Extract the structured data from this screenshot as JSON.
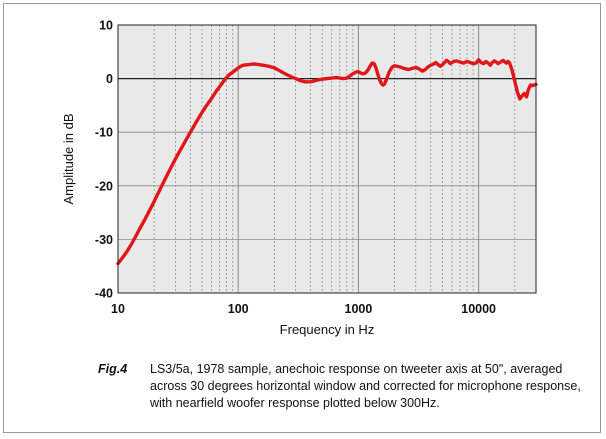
{
  "figure": {
    "label": "Fig.4",
    "caption": "LS3/5a, 1978 sample, anechoic response on tweeter axis at 50\", averaged across 30 degrees horizontal window and corrected for microphone response, with nearfield woofer response plotted below 300Hz."
  },
  "chart_data": {
    "type": "line",
    "title": "",
    "xlabel": "Frequency in Hz",
    "ylabel": "Amplitude in dB",
    "xscale": "log",
    "xlim": [
      10,
      30000
    ],
    "ylim": [
      -40,
      10
    ],
    "xticks": [
      {
        "value": 10,
        "label": "10"
      },
      {
        "value": 100,
        "label": "100"
      },
      {
        "value": 1000,
        "label": "1000"
      },
      {
        "value": 10000,
        "label": "10000"
      }
    ],
    "yticks": [
      {
        "value": 10,
        "label": "10"
      },
      {
        "value": 0,
        "label": "0"
      },
      {
        "value": -10,
        "label": "-10"
      },
      {
        "value": -20,
        "label": "-20"
      },
      {
        "value": -30,
        "label": "-30"
      },
      {
        "value": -40,
        "label": "-40"
      }
    ],
    "grid": true,
    "colors": {
      "line": "#e0161a",
      "grid": "#8a8a8a",
      "zero_line": "#222222",
      "plot_bg": "#e9e9e9"
    },
    "series": [
      {
        "x": [
          10,
          11,
          12,
          13,
          14,
          15,
          17,
          20,
          23,
          26,
          30,
          35,
          40,
          45,
          50,
          55,
          60,
          65,
          70,
          75,
          80,
          85,
          90,
          95,
          100,
          105,
          110,
          120,
          130,
          140,
          150,
          160,
          170,
          180,
          200,
          220,
          250,
          280,
          300,
          330,
          360,
          400,
          450,
          500,
          550,
          600,
          650,
          700,
          750,
          800,
          850,
          900,
          950,
          1000,
          1050,
          1100,
          1150,
          1200,
          1250,
          1300,
          1350,
          1400,
          1450,
          1500,
          1550,
          1600,
          1650,
          1700,
          1800,
          1900,
          2000,
          2200,
          2400,
          2600,
          2800,
          3000,
          3200,
          3400,
          3600,
          3800,
          4000,
          4200,
          4400,
          4600,
          4800,
          5000,
          5200,
          5400,
          5600,
          5800,
          6000,
          6200,
          6500,
          7000,
          7500,
          8000,
          8500,
          9000,
          9500,
          10000,
          10500,
          11000,
          11500,
          12000,
          12500,
          13000,
          13500,
          14000,
          14500,
          15000,
          15500,
          16000,
          16500,
          17000,
          17500,
          18000,
          18500,
          19000,
          20000,
          21000,
          22000,
          23000,
          24000,
          25000,
          26000,
          27000,
          28000,
          29000,
          30000
        ],
        "values": [
          -34.5,
          -33.3,
          -32.1,
          -30.8,
          -29.5,
          -28.2,
          -26.0,
          -22.9,
          -20.1,
          -17.7,
          -15.0,
          -12.3,
          -10.0,
          -8.0,
          -6.3,
          -4.9,
          -3.7,
          -2.5,
          -1.5,
          -0.6,
          0.2,
          0.8,
          1.2,
          1.6,
          2.0,
          2.3,
          2.5,
          2.6,
          2.7,
          2.7,
          2.6,
          2.5,
          2.4,
          2.3,
          2.0,
          1.5,
          0.8,
          0.3,
          0.0,
          -0.4,
          -0.6,
          -0.6,
          -0.3,
          -0.1,
          0.0,
          0.1,
          0.2,
          0.1,
          0.0,
          0.1,
          0.5,
          0.9,
          1.2,
          1.3,
          1.0,
          0.9,
          1.1,
          1.6,
          2.3,
          2.9,
          2.8,
          2.0,
          0.8,
          -0.2,
          -0.9,
          -1.2,
          -1.0,
          -0.3,
          1.2,
          2.1,
          2.4,
          2.2,
          1.9,
          1.7,
          1.9,
          2.1,
          1.8,
          1.4,
          1.7,
          2.2,
          2.5,
          2.7,
          3.0,
          2.6,
          2.3,
          2.6,
          3.0,
          3.4,
          3.2,
          2.8,
          3.0,
          3.2,
          3.3,
          3.1,
          2.9,
          3.2,
          3.0,
          2.8,
          2.9,
          3.5,
          3.0,
          2.8,
          3.2,
          2.9,
          2.5,
          3.0,
          3.3,
          3.1,
          2.8,
          3.0,
          3.2,
          3.4,
          3.1,
          2.9,
          3.2,
          3.0,
          2.3,
          1.5,
          -0.5,
          -2.5,
          -3.8,
          -3.2,
          -2.8,
          -3.4,
          -2.0,
          -1.2,
          -1.3,
          -1.2,
          -1.1
        ]
      }
    ]
  }
}
